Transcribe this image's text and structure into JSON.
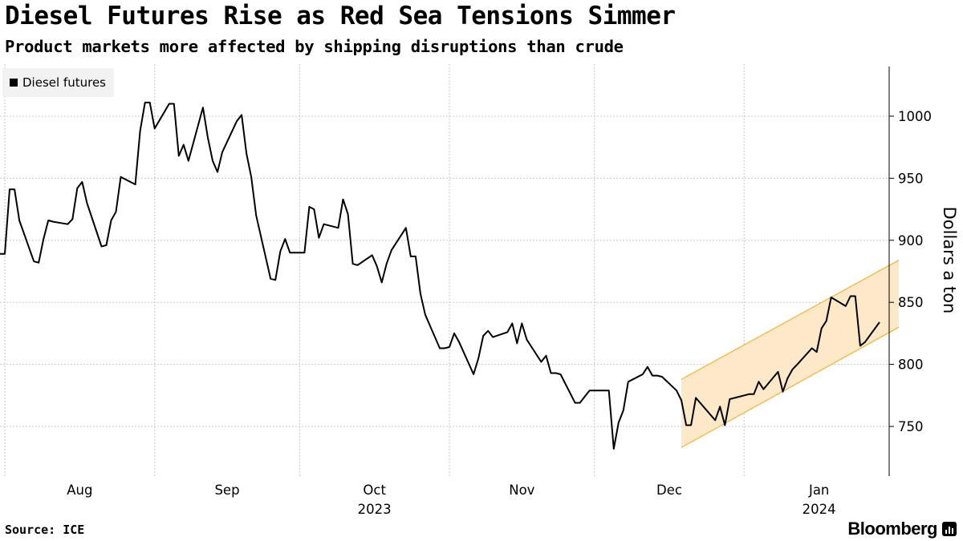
{
  "header": {
    "title": "Diesel Futures Rise as Red Sea Tensions Simmer",
    "subtitle": "Product markets more affected by shipping disruptions than crude"
  },
  "legend": {
    "label": "Diesel futures"
  },
  "footer": {
    "source": "Source: ICE",
    "brand": "Bloomberg"
  },
  "colors": {
    "line": "#000000",
    "channel_fill": "#fde8c8",
    "channel_stroke": "#f2b33d",
    "grid": "#c8c8c8"
  },
  "chart_data": {
    "type": "line",
    "title": "Diesel Futures Rise as Red Sea Tensions Simmer",
    "ylabel": "Dollars a ton",
    "ylim": [
      710,
      1040
    ],
    "yticks": [
      750,
      800,
      850,
      900,
      950,
      1000
    ],
    "x_start": "2023-07-31",
    "x_end": "2024-01-31",
    "xtick_labels": [
      {
        "label": "Aug",
        "date": "2023-08-01",
        "pos": "month-mid"
      },
      {
        "label": "Sep",
        "date": "2023-09-01",
        "pos": "month-mid"
      },
      {
        "label": "Oct",
        "date": "2023-10-01",
        "pos": "month-mid"
      },
      {
        "label": "Nov",
        "date": "2023-11-01",
        "pos": "month-mid"
      },
      {
        "label": "Dec",
        "date": "2023-12-01",
        "pos": "month-mid"
      },
      {
        "label": "Jan",
        "date": "2024-01-01",
        "pos": "month-mid"
      }
    ],
    "year_labels": [
      {
        "label": "2023",
        "date": "2023-10-01"
      },
      {
        "label": "2024",
        "date": "2024-01-01"
      }
    ],
    "vgrid_dates": [
      "2023-08-01",
      "2023-09-01",
      "2023-10-01",
      "2023-11-01",
      "2023-12-01",
      "2024-01-01",
      "2024-02-01"
    ],
    "series": [
      {
        "name": "Diesel futures",
        "points": [
          [
            "2023-07-31",
            889
          ],
          [
            "2023-08-01",
            889
          ],
          [
            "2023-08-02",
            941
          ],
          [
            "2023-08-03",
            941
          ],
          [
            "2023-08-04",
            916
          ],
          [
            "2023-08-07",
            883
          ],
          [
            "2023-08-08",
            882
          ],
          [
            "2023-08-09",
            901
          ],
          [
            "2023-08-10",
            916
          ],
          [
            "2023-08-11",
            915
          ],
          [
            "2023-08-14",
            913
          ],
          [
            "2023-08-15",
            917
          ],
          [
            "2023-08-16",
            942
          ],
          [
            "2023-08-17",
            947
          ],
          [
            "2023-08-18",
            930
          ],
          [
            "2023-08-21",
            895
          ],
          [
            "2023-08-22",
            896
          ],
          [
            "2023-08-23",
            916
          ],
          [
            "2023-08-24",
            923
          ],
          [
            "2023-08-25",
            951
          ],
          [
            "2023-08-28",
            945
          ],
          [
            "2023-08-29",
            988
          ],
          [
            "2023-08-30",
            1011
          ],
          [
            "2023-08-31",
            1011
          ],
          [
            "2023-09-01",
            990
          ],
          [
            "2023-09-04",
            1010
          ],
          [
            "2023-09-05",
            1010
          ],
          [
            "2023-09-06",
            968
          ],
          [
            "2023-09-07",
            977
          ],
          [
            "2023-09-08",
            964
          ],
          [
            "2023-09-11",
            1007
          ],
          [
            "2023-09-12",
            983
          ],
          [
            "2023-09-13",
            964
          ],
          [
            "2023-09-14",
            955
          ],
          [
            "2023-09-15",
            971
          ],
          [
            "2023-09-18",
            996
          ],
          [
            "2023-09-19",
            1001
          ],
          [
            "2023-09-20",
            970
          ],
          [
            "2023-09-21",
            951
          ],
          [
            "2023-09-22",
            920
          ],
          [
            "2023-09-25",
            869
          ],
          [
            "2023-09-26",
            868
          ],
          [
            "2023-09-27",
            891
          ],
          [
            "2023-09-28",
            901
          ],
          [
            "2023-09-29",
            890
          ],
          [
            "2023-10-02",
            890
          ],
          [
            "2023-10-03",
            927
          ],
          [
            "2023-10-04",
            925
          ],
          [
            "2023-10-05",
            902
          ],
          [
            "2023-10-06",
            913
          ],
          [
            "2023-10-09",
            910
          ],
          [
            "2023-10-10",
            933
          ],
          [
            "2023-10-11",
            921
          ],
          [
            "2023-10-12",
            881
          ],
          [
            "2023-10-13",
            880
          ],
          [
            "2023-10-16",
            888
          ],
          [
            "2023-10-17",
            879
          ],
          [
            "2023-10-18",
            866
          ],
          [
            "2023-10-19",
            881
          ],
          [
            "2023-10-20",
            892
          ],
          [
            "2023-10-23",
            910
          ],
          [
            "2023-10-24",
            887
          ],
          [
            "2023-10-25",
            887
          ],
          [
            "2023-10-26",
            857
          ],
          [
            "2023-10-27",
            840
          ],
          [
            "2023-10-30",
            813
          ],
          [
            "2023-10-31",
            813
          ],
          [
            "2023-11-01",
            814
          ],
          [
            "2023-11-02",
            825
          ],
          [
            "2023-11-03",
            818
          ],
          [
            "2023-11-06",
            792
          ],
          [
            "2023-11-07",
            805
          ],
          [
            "2023-11-08",
            823
          ],
          [
            "2023-11-09",
            827
          ],
          [
            "2023-11-10",
            822
          ],
          [
            "2023-11-13",
            826
          ],
          [
            "2023-11-14",
            833
          ],
          [
            "2023-11-15",
            817
          ],
          [
            "2023-11-16",
            833
          ],
          [
            "2023-11-17",
            820
          ],
          [
            "2023-11-20",
            802
          ],
          [
            "2023-11-21",
            807
          ],
          [
            "2023-11-22",
            793
          ],
          [
            "2023-11-23",
            793
          ],
          [
            "2023-11-24",
            792
          ],
          [
            "2023-11-27",
            769
          ],
          [
            "2023-11-28",
            769
          ],
          [
            "2023-11-29",
            774
          ],
          [
            "2023-11-30",
            779
          ],
          [
            "2023-12-01",
            779
          ],
          [
            "2023-12-04",
            779
          ],
          [
            "2023-12-05",
            732
          ],
          [
            "2023-12-06",
            753
          ],
          [
            "2023-12-07",
            763
          ],
          [
            "2023-12-08",
            786
          ],
          [
            "2023-12-11",
            792
          ],
          [
            "2023-12-12",
            798
          ],
          [
            "2023-12-13",
            791
          ],
          [
            "2023-12-14",
            791
          ],
          [
            "2023-12-15",
            790
          ],
          [
            "2023-12-18",
            779
          ],
          [
            "2023-12-19",
            771
          ],
          [
            "2023-12-20",
            751
          ],
          [
            "2023-12-21",
            751
          ],
          [
            "2023-12-22",
            773
          ],
          [
            "2023-12-26",
            755
          ],
          [
            "2023-12-27",
            766
          ],
          [
            "2023-12-28",
            751
          ],
          [
            "2023-12-29",
            772
          ],
          [
            "2024-01-02",
            776
          ],
          [
            "2024-01-03",
            776
          ],
          [
            "2024-01-04",
            786
          ],
          [
            "2024-01-05",
            780
          ],
          [
            "2024-01-08",
            794
          ],
          [
            "2024-01-09",
            778
          ],
          [
            "2024-01-10",
            789
          ],
          [
            "2024-01-11",
            796
          ],
          [
            "2024-01-12",
            800
          ],
          [
            "2024-01-15",
            813
          ],
          [
            "2024-01-16",
            810
          ],
          [
            "2024-01-17",
            829
          ],
          [
            "2024-01-18",
            835
          ],
          [
            "2024-01-19",
            854
          ],
          [
            "2024-01-22",
            847
          ],
          [
            "2024-01-23",
            855
          ],
          [
            "2024-01-24",
            855
          ],
          [
            "2024-01-25",
            815
          ],
          [
            "2024-01-26",
            818
          ],
          [
            "2024-01-29",
            834
          ]
        ]
      }
    ],
    "annotations": [
      {
        "type": "channel",
        "x_start": "2023-12-19",
        "x_end": "2024-02-02",
        "upper": [
          788,
          884
        ],
        "lower": [
          733,
          830
        ]
      }
    ]
  }
}
